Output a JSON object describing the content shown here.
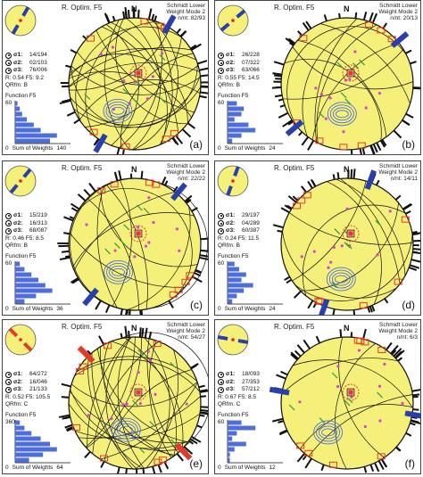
{
  "colors": {
    "stereonet_fill": "#f5f07a",
    "net_outline": "#111111",
    "compression_arrow": "#2a3fae",
    "extension_arrow": "#e23b2b",
    "histogram_bar": "#4f6fd6",
    "fault_plane": "#111111",
    "slip_marker_green": "#38a33a",
    "pole_magenta": "#d447c8"
  },
  "panels": [
    {
      "title": "R. Optim. F5",
      "header": [
        "Schmidt Lower",
        "Weight Mode 2",
        "n/nt: 82/93"
      ],
      "north": "N",
      "sigma1": "14/194",
      "sigma2": "02/103",
      "sigma3": "76/006",
      "r_f5": "R: 0.54  F5: 9.2",
      "qrfm": "QRfm: B",
      "function_label": "Function F5",
      "y_max": "60",
      "y_zero": "0",
      "sum_label": "Sum of Weights",
      "x_max": "140",
      "letter": "(a)",
      "histogram": [
        0.05,
        0.1,
        0.15,
        0.25,
        0.4,
        0.55,
        0.9,
        0.75
      ],
      "arrow_type": "compression",
      "arrow_angle": 30
    },
    {
      "title": "R. Optim. F5",
      "header": [
        "Schmidt Lower",
        "Weight Mode 2",
        "n/nt: 20/13"
      ],
      "north": "N",
      "sigma1": "26/228",
      "sigma2": "07/322",
      "sigma3": "63/066",
      "r_f5": "R: 0.55  F5: 14.5",
      "qrfm": "QRfm: B",
      "function_label": "Function F5",
      "y_max": "60",
      "y_zero": "0",
      "sum_label": "Sum of Weights",
      "x_max": "24",
      "letter": "(b)",
      "histogram": [
        0.2,
        0.35,
        0.3,
        0.15,
        0.45,
        0.6,
        0.3,
        0.1
      ],
      "arrow_type": "compression",
      "arrow_angle": 50
    },
    {
      "title": "R. Optim. F5",
      "header": [
        "Schmidt Lower",
        "Weight Mode 2",
        "n/nt: 22/22"
      ],
      "north": "N",
      "sigma1": "15/219",
      "sigma2": "16/313",
      "sigma3": "68/087",
      "r_f5": "R: 0.46  F5: 8.5",
      "qrfm": "QRfm: B",
      "function_label": "Function F5",
      "y_max": "60",
      "y_zero": "0",
      "sum_label": "Sum of Weights",
      "x_max": "36",
      "letter": "(c)",
      "histogram": [
        0.1,
        0.2,
        0.35,
        0.5,
        0.65,
        0.8,
        0.45,
        0.2
      ],
      "arrow_type": "compression",
      "arrow_angle": 40
    },
    {
      "title": "R. Optim. F5",
      "header": [
        "Schmidt Lower",
        "Weight Mode 2",
        "n/nt: 14/11"
      ],
      "north": "N",
      "sigma1": "29/197",
      "sigma2": "04/289",
      "sigma3": "60/387",
      "r_f5": "R: 0.24  F5: 11.5",
      "qrfm": "QRfm: B",
      "function_label": "Function F5",
      "y_max": "60",
      "y_zero": "0",
      "sum_label": "Sum of Weights",
      "x_max": "24",
      "letter": "(d)",
      "histogram": [
        0.15,
        0.25,
        0.4,
        0.3,
        0.55,
        0.35,
        0.2,
        0.1
      ],
      "arrow_type": "compression",
      "arrow_angle": 20
    },
    {
      "title": "R. Optim. F5",
      "header": [
        "Schmidt Lower",
        "Weight Mode 2",
        "n/nt: 54/27"
      ],
      "north": "N",
      "sigma1": "64/272",
      "sigma2": "16/046",
      "sigma3": "21/133",
      "r_f5": "R: 0.52  F5: 105.5",
      "qrfm": "QRfm: C",
      "function_label": "Function F5",
      "y_max": "360",
      "y_zero": "0",
      "sum_label": "Sum of Weights",
      "x_max": "64",
      "letter": "(e)",
      "histogram": [
        0.1,
        0.2,
        0.35,
        0.55,
        0.75,
        0.9,
        0.6,
        0.3
      ],
      "arrow_type": "extension",
      "arrow_angle": 135
    },
    {
      "title": "R. Optim. F5",
      "header": [
        "Schmidt Lower",
        "Weight Mode 2",
        "n/nt: 6/3"
      ],
      "north": "N",
      "sigma1": "18/093",
      "sigma2": "27/353",
      "sigma3": "57/212",
      "r_f5": "R: 0.67  F5: 8.5",
      "qrfm": "QRfm: C",
      "function_label": "Function F5",
      "y_max": "60",
      "y_zero": "0",
      "sum_label": "Sum of Weights",
      "x_max": "12",
      "letter": "(f)",
      "histogram": [
        0.3,
        0.6,
        0.2,
        0.1,
        0.4,
        0.15,
        0.05,
        0.05
      ],
      "arrow_type": "compression",
      "arrow_angle": 100
    }
  ]
}
